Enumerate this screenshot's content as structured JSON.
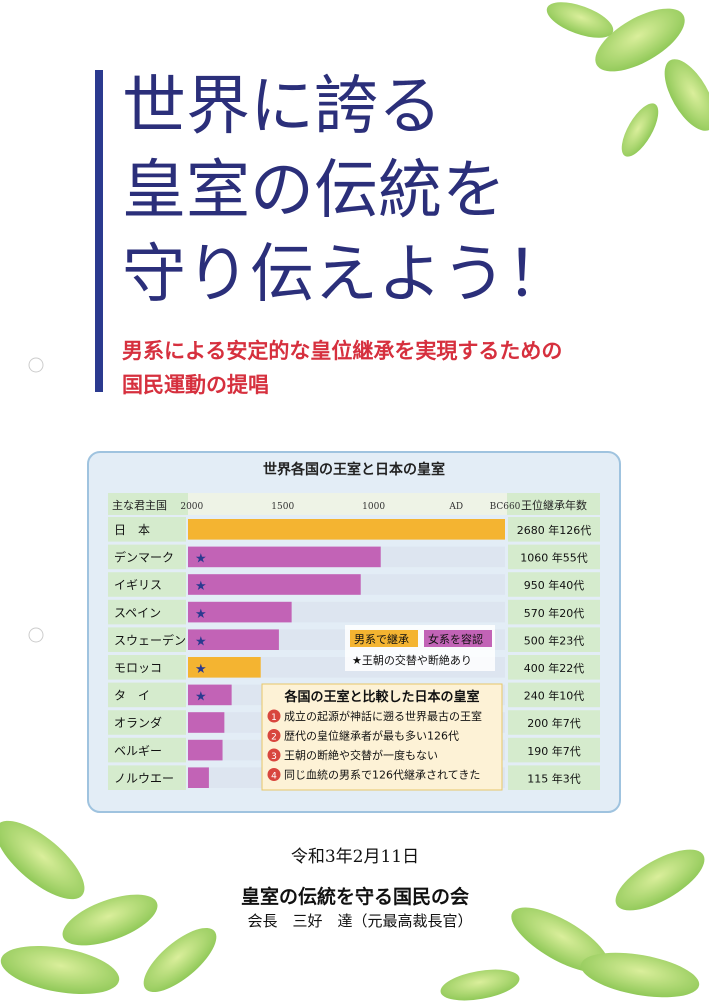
{
  "title_lines": [
    "世界に誇る",
    "皇室の伝統を",
    "守り伝えよう！"
  ],
  "subtitle_lines": [
    "男系による安定的な皇位継承を実現するための",
    "国民運動の提唱"
  ],
  "chart_data": {
    "type": "bar",
    "orientation": "horizontal",
    "title": "世界各国の王室と日本の皇室",
    "category_header": "主な君主国",
    "value_header": "王位継承年数",
    "categories": [
      "日　本",
      "デンマーク",
      "イギリス",
      "スペイン",
      "スウェーデン",
      "モロッコ",
      "タ　イ",
      "オランダ",
      "ベルギー",
      "ノルウエー"
    ],
    "values": [
      2680,
      1060,
      950,
      570,
      500,
      400,
      240,
      200,
      190,
      115
    ],
    "value_labels": [
      "2680 年126代",
      "1060 年55代",
      "950 年40代",
      "570 年20代",
      "500 年23代",
      "400 年22代",
      "240 年10代",
      "200 年7代",
      "190 年7代",
      "115 年3代"
    ],
    "succession": [
      "male",
      "female",
      "female",
      "female",
      "female",
      "male",
      "female",
      "female",
      "female",
      "female"
    ],
    "dynasty_change": [
      false,
      true,
      true,
      true,
      true,
      true,
      true,
      false,
      false,
      false
    ],
    "legend": {
      "male": {
        "label": "男系で継承",
        "color": "#f4b431"
      },
      "female": {
        "label": "女系を容認",
        "color": "#c263b6"
      },
      "star": "★王朝の交替や断絶あり"
    },
    "xlim": [
      0,
      2680
    ],
    "xticks": [
      {
        "value": 21,
        "label": "2000"
      },
      {
        "value": 521,
        "label": "1500"
      },
      {
        "value": 1021,
        "label": "1000"
      },
      {
        "value": 2021,
        "label": "AD"
      },
      {
        "value": 2680,
        "label": "BC660"
      }
    ],
    "note": {
      "title": "各国の王室と比較した日本の皇室",
      "items": [
        {
          "number": "1",
          "text": "成立の起源が神話に遡る世界最古の王室"
        },
        {
          "number": "2",
          "text": "歴代の皇位継承者が最も多い126代"
        },
        {
          "number": "3",
          "text": "王朝の断絶や交替が一度もない"
        },
        {
          "number": "4",
          "text": "同じ血統の男系で126代継承されてきた"
        }
      ]
    }
  },
  "footer": {
    "date": "令和3年2月11日",
    "organization": "皇室の伝統を守る国民の会",
    "chairman": "会長　三好　達（元最高裁長官）"
  }
}
